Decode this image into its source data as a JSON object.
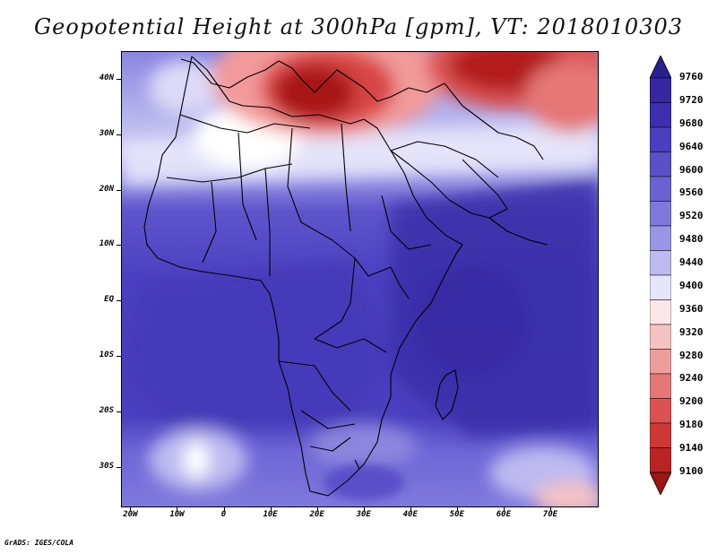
{
  "title": "Geopotential Height at 300hPa [gpm], VT: 2018010303",
  "credit": "GrADS: IGES/COLA",
  "map": {
    "lat_labels": [
      "40N",
      "30N",
      "20N",
      "10N",
      "EQ",
      "10S",
      "20S",
      "30S"
    ],
    "lat_values": [
      40,
      30,
      20,
      10,
      0,
      -10,
      -20,
      -30
    ],
    "lon_labels": [
      "20W",
      "10W",
      "0",
      "10E",
      "20E",
      "30E",
      "40E",
      "50E",
      "60E",
      "70E"
    ],
    "lon_values": [
      -20,
      -10,
      0,
      10,
      20,
      30,
      40,
      50,
      60,
      70
    ],
    "lat_range": [
      -37,
      45
    ],
    "lon_range": [
      -22,
      80
    ]
  },
  "colorbar": {
    "labels": [
      "9760",
      "9720",
      "9680",
      "9640",
      "9600",
      "9560",
      "9520",
      "9480",
      "9440",
      "9400",
      "9360",
      "9320",
      "9280",
      "9240",
      "9200",
      "9180",
      "9140",
      "9100"
    ],
    "colors": [
      "#2a1f8e",
      "#3527a0",
      "#3d2fb0",
      "#4a3fbf",
      "#5a50c8",
      "#6a62d2",
      "#8079dc",
      "#9a95e6",
      "#bdbaf0",
      "#e6e5fa",
      "#fbe7e7",
      "#f5c2c2",
      "#ee9d9d",
      "#e57777",
      "#dc5252",
      "#cf3737",
      "#bb2424",
      "#9e1515"
    ]
  }
}
